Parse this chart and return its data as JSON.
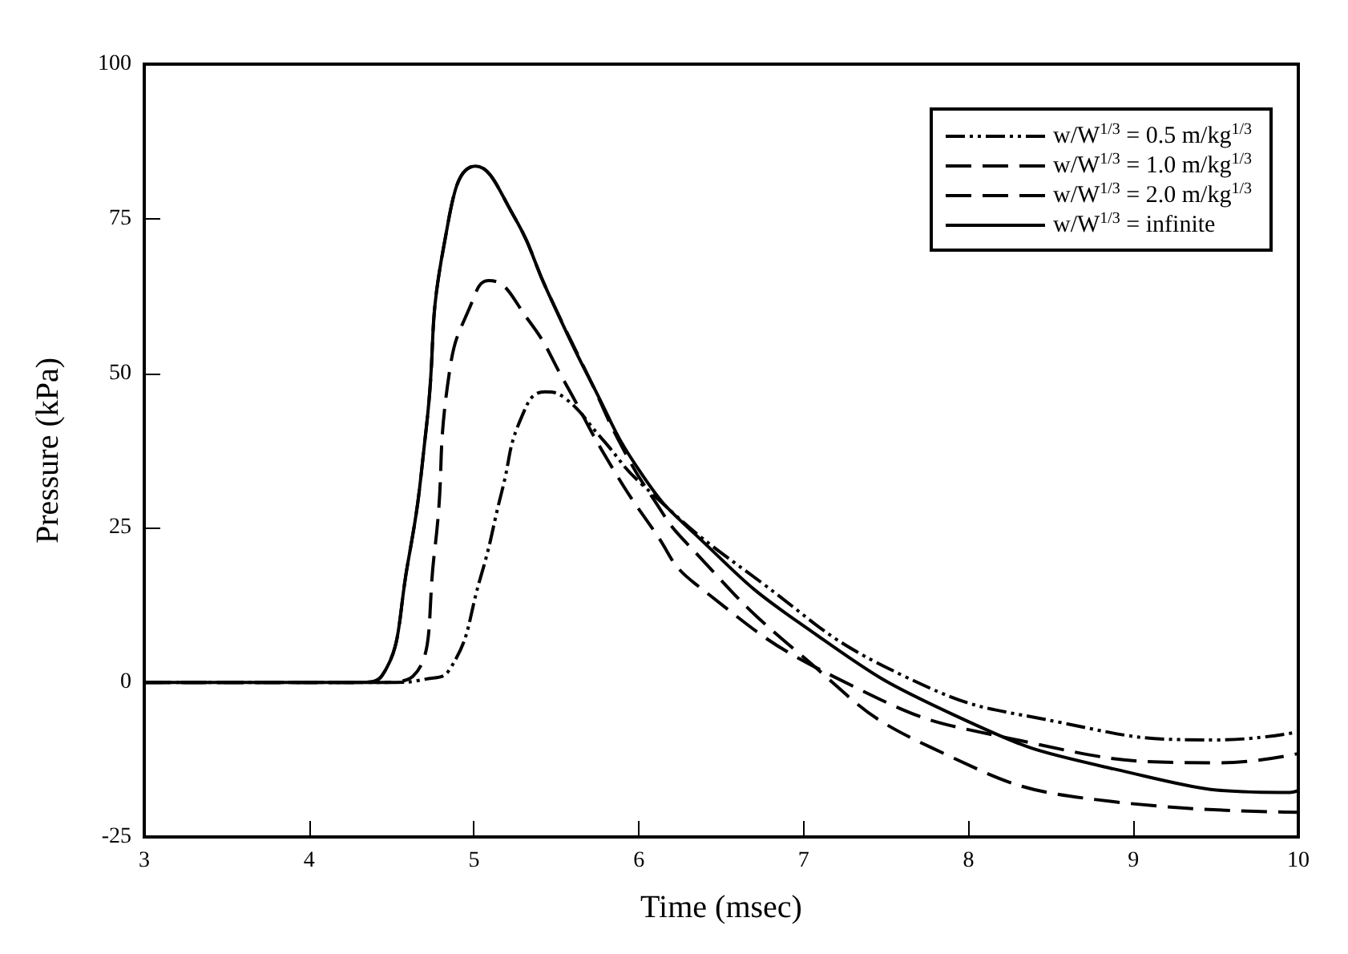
{
  "chart_data": {
    "type": "line",
    "xlabel": "Time (msec)",
    "ylabel": "Pressure (kPa)",
    "xlim": [
      3,
      10
    ],
    "xticks": [
      3,
      4,
      5,
      6,
      7,
      8,
      9,
      10
    ],
    "ylim": [
      -25,
      100
    ],
    "yticks": [
      -25,
      0,
      25,
      50,
      75,
      100
    ],
    "grid": false,
    "legend": "top right",
    "marker": "none",
    "series": [
      {
        "name": "w/W$^{1/3}$ = 0.5 m/kg$^{1/3}$",
        "color": "#000000",
        "line_style": "dotted",
        "x": [
          3,
          4.5,
          4.7,
          4.85,
          5.04,
          5.17,
          5.29,
          5.43,
          5.55,
          5.77,
          6.02,
          6.66,
          7.61,
          8.56,
          9.51,
          10
        ],
        "values": [
          0,
          0,
          0.5,
          2,
          17,
          31,
          43,
          47,
          46,
          39.6,
          32,
          17.8,
          1,
          -6.5,
          -9.3,
          -8
        ]
      },
      {
        "name": "w/W$^{1/3}$ = 1.0 m/kg$^{1/3}$",
        "color": "#000000",
        "line_style": "dashed",
        "x": [
          3,
          4.4,
          4.63,
          4.76,
          4.85,
          4.98,
          5.09,
          5.33,
          5.55,
          5.81,
          6.09,
          6.34,
          7.29,
          8.24,
          9.52,
          10
        ],
        "values": [
          0,
          0,
          1,
          21,
          50,
          61,
          65,
          58.6,
          48.6,
          36,
          24.6,
          16,
          -0.5,
          -9,
          -13,
          -11.5
        ]
      },
      {
        "name": "w/W$^{1/3}$ = 2.0 m/kg$^{1/3}$",
        "color": "#000000",
        "line_style": "dashed",
        "x": [
          3,
          4.3,
          4.44,
          4.6,
          4.71,
          4.82,
          5.01,
          5.24,
          5.45,
          5.71,
          5.9,
          6.09,
          6.28,
          6.98,
          7.77,
          8.88,
          10
        ],
        "values": [
          0,
          0,
          1,
          19.5,
          41,
          71,
          83.5,
          75.5,
          63,
          48.6,
          38,
          29.6,
          22.8,
          4.5,
          -10.5,
          -19.3,
          -21
        ]
      },
      {
        "name": "w/W$^{1/3}$ = infinite",
        "color": "#000000",
        "line_style": "solid",
        "x": [
          3,
          4.3,
          4.44,
          4.6,
          4.71,
          4.82,
          5.01,
          5.24,
          5.45,
          5.71,
          6.02,
          6.34,
          6.98,
          7.93,
          8.88,
          9.95,
          10
        ],
        "values": [
          0,
          0,
          1,
          19.5,
          41,
          71,
          83.5,
          75.5,
          63,
          48.6,
          33.6,
          24,
          9.5,
          -5.5,
          -14,
          -17.8,
          -17.5
        ]
      }
    ]
  }
}
